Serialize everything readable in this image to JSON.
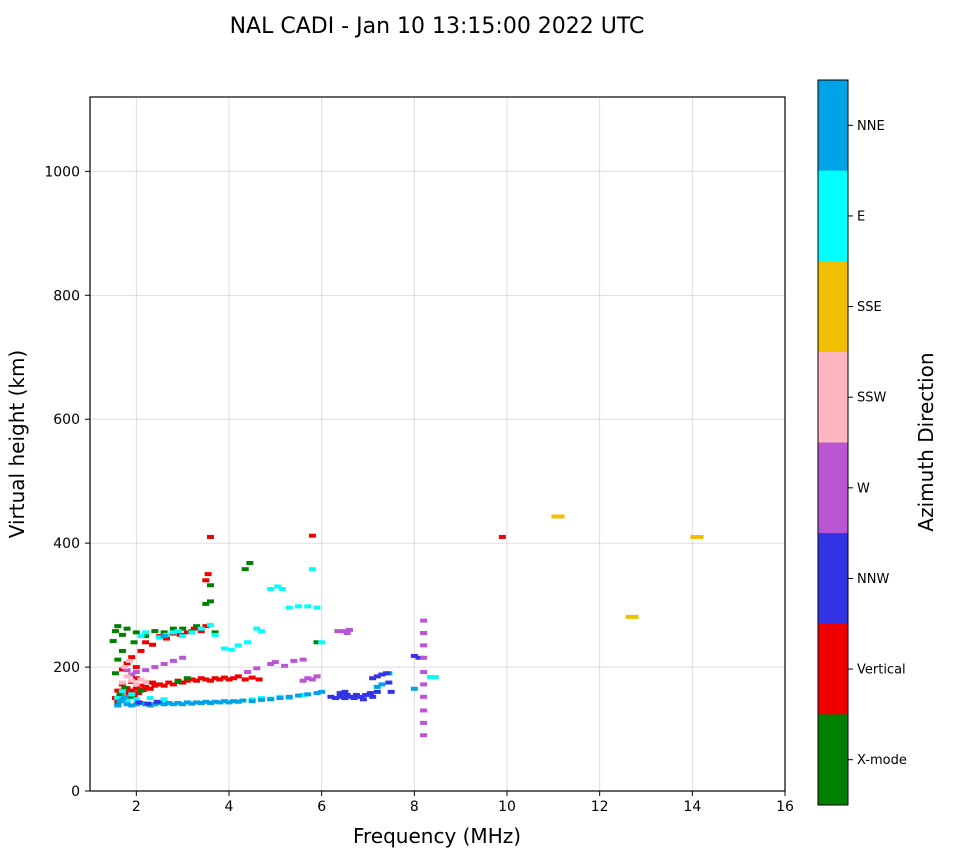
{
  "chart_data": {
    "type": "scatter",
    "title": "NAL CADI - Jan 10 13:15:00 2022 UTC",
    "xlabel": "Frequency (MHz)",
    "ylabel": "Virtual height (km)",
    "xlim": [
      1,
      16
    ],
    "ylim": [
      0,
      1120
    ],
    "xticks": [
      2,
      4,
      6,
      8,
      10,
      12,
      14,
      16
    ],
    "yticks": [
      0,
      200,
      400,
      600,
      800,
      1000
    ],
    "grid": true,
    "x_units": "MHz",
    "y_units": "km",
    "colorbar": {
      "label": "Azimuth Direction",
      "categories_top_to_bottom": [
        {
          "label": "NNE",
          "color": "#00a2e8"
        },
        {
          "label": "E",
          "color": "#00ffff"
        },
        {
          "label": "SSE",
          "color": "#f0c000"
        },
        {
          "label": "SSW",
          "color": "#ffb6c1"
        },
        {
          "label": "W",
          "color": "#ba55d3"
        },
        {
          "label": "NNW",
          "color": "#3333e6"
        },
        {
          "label": "Vertical",
          "color": "#ee0000"
        },
        {
          "label": "X-mode",
          "color": "#008000"
        }
      ]
    },
    "series": [
      {
        "name": "Vertical",
        "color": "#ee0000",
        "marker": {
          "w": 7,
          "h": 4
        },
        "points": [
          [
            1.55,
            150
          ],
          [
            1.6,
            145
          ],
          [
            1.6,
            162
          ],
          [
            1.65,
            155
          ],
          [
            1.7,
            150
          ],
          [
            1.7,
            172
          ],
          [
            1.75,
            160
          ],
          [
            1.8,
            152
          ],
          [
            1.8,
            166
          ],
          [
            1.85,
            158
          ],
          [
            1.9,
            162
          ],
          [
            1.9,
            176
          ],
          [
            1.95,
            152
          ],
          [
            2.0,
            165
          ],
          [
            2.0,
            182
          ],
          [
            2.05,
            158
          ],
          [
            2.1,
            170
          ],
          [
            2.15,
            163
          ],
          [
            2.2,
            168
          ],
          [
            2.3,
            165
          ],
          [
            2.35,
            175
          ],
          [
            2.4,
            170
          ],
          [
            2.5,
            172
          ],
          [
            2.6,
            170
          ],
          [
            2.7,
            175
          ],
          [
            2.8,
            172
          ],
          [
            2.9,
            178
          ],
          [
            3.0,
            175
          ],
          [
            3.1,
            178
          ],
          [
            3.2,
            180
          ],
          [
            3.3,
            178
          ],
          [
            3.4,
            182
          ],
          [
            3.5,
            180
          ],
          [
            3.6,
            178
          ],
          [
            3.7,
            182
          ],
          [
            3.8,
            180
          ],
          [
            3.9,
            183
          ],
          [
            4.0,
            180
          ],
          [
            4.1,
            182
          ],
          [
            4.2,
            185
          ],
          [
            4.35,
            180
          ],
          [
            4.5,
            183
          ],
          [
            4.65,
            180
          ],
          [
            1.7,
            196
          ],
          [
            1.8,
            206
          ],
          [
            1.9,
            216
          ],
          [
            2.0,
            200
          ],
          [
            2.1,
            226
          ],
          [
            2.2,
            240
          ],
          [
            2.35,
            236
          ],
          [
            2.5,
            250
          ],
          [
            2.65,
            246
          ],
          [
            2.8,
            254
          ],
          [
            2.95,
            252
          ],
          [
            3.1,
            256
          ],
          [
            3.25,
            262
          ],
          [
            3.4,
            258
          ],
          [
            3.5,
            266
          ],
          [
            3.5,
            340
          ],
          [
            3.55,
            350
          ],
          [
            3.6,
            410
          ],
          [
            5.8,
            412
          ],
          [
            9.9,
            410
          ]
        ]
      },
      {
        "name": "X-mode",
        "color": "#008000",
        "marker": {
          "w": 7,
          "h": 4
        },
        "points": [
          [
            1.5,
            242
          ],
          [
            1.55,
            190
          ],
          [
            1.55,
            258
          ],
          [
            1.6,
            140
          ],
          [
            1.6,
            212
          ],
          [
            1.6,
            266
          ],
          [
            1.65,
            156
          ],
          [
            1.7,
            226
          ],
          [
            1.7,
            252
          ],
          [
            1.75,
            166
          ],
          [
            1.8,
            262
          ],
          [
            1.9,
            152
          ],
          [
            1.95,
            240
          ],
          [
            2.0,
            256
          ],
          [
            2.1,
            162
          ],
          [
            2.2,
            250
          ],
          [
            2.4,
            258
          ],
          [
            2.6,
            256
          ],
          [
            2.8,
            262
          ],
          [
            2.9,
            176
          ],
          [
            3.0,
            262
          ],
          [
            3.1,
            182
          ],
          [
            3.2,
            258
          ],
          [
            3.3,
            266
          ],
          [
            3.4,
            262
          ],
          [
            3.5,
            302
          ],
          [
            3.6,
            306
          ],
          [
            3.6,
            332
          ],
          [
            3.7,
            256
          ],
          [
            4.35,
            358
          ],
          [
            4.45,
            368
          ],
          [
            5.9,
            240
          ]
        ]
      },
      {
        "name": "E",
        "color": "#00ffff",
        "marker": {
          "w": 7,
          "h": 4
        },
        "points": [
          [
            1.6,
            150
          ],
          [
            1.7,
            161
          ],
          [
            1.8,
            146
          ],
          [
            1.9,
            156
          ],
          [
            2.0,
            148
          ],
          [
            2.1,
            250
          ],
          [
            2.2,
            256
          ],
          [
            2.3,
            150
          ],
          [
            2.5,
            248
          ],
          [
            2.6,
            148
          ],
          [
            2.65,
            252
          ],
          [
            2.8,
            256
          ],
          [
            2.9,
            258
          ],
          [
            3.0,
            250
          ],
          [
            3.2,
            256
          ],
          [
            3.4,
            262
          ],
          [
            3.6,
            268
          ],
          [
            3.7,
            252
          ],
          [
            3.9,
            230
          ],
          [
            4.05,
            228
          ],
          [
            4.2,
            235
          ],
          [
            4.4,
            240
          ],
          [
            4.6,
            262
          ],
          [
            4.7,
            258
          ],
          [
            4.9,
            326
          ],
          [
            5.05,
            330
          ],
          [
            5.15,
            326
          ],
          [
            5.3,
            296
          ],
          [
            5.5,
            298
          ],
          [
            5.7,
            298
          ],
          [
            5.8,
            358
          ],
          [
            5.9,
            296
          ],
          [
            6.0,
            240
          ],
          [
            4.5,
            148
          ],
          [
            4.7,
            150
          ],
          [
            4.9,
            149
          ],
          [
            5.1,
            152
          ],
          [
            5.3,
            150
          ],
          [
            5.6,
            155
          ],
          [
            8.35,
            184
          ],
          [
            8.45,
            184
          ]
        ]
      },
      {
        "name": "NNE",
        "color": "#00a2e8",
        "marker": {
          "w": 7,
          "h": 4
        },
        "points": [
          [
            1.6,
            138
          ],
          [
            1.65,
            145
          ],
          [
            1.7,
            148
          ],
          [
            1.75,
            152
          ],
          [
            1.8,
            140
          ],
          [
            1.9,
            138
          ],
          [
            2.0,
            140
          ],
          [
            2.1,
            142
          ],
          [
            2.2,
            140
          ],
          [
            2.3,
            138
          ],
          [
            2.4,
            140
          ],
          [
            2.5,
            142
          ],
          [
            2.6,
            140
          ],
          [
            2.7,
            142
          ],
          [
            2.8,
            140
          ],
          [
            2.9,
            142
          ],
          [
            3.0,
            140
          ],
          [
            3.1,
            143
          ],
          [
            3.2,
            141
          ],
          [
            3.3,
            143
          ],
          [
            3.4,
            142
          ],
          [
            3.5,
            144
          ],
          [
            3.6,
            142
          ],
          [
            3.7,
            144
          ],
          [
            3.8,
            143
          ],
          [
            3.9,
            145
          ],
          [
            4.0,
            143
          ],
          [
            4.1,
            145
          ],
          [
            4.2,
            144
          ],
          [
            4.3,
            146
          ],
          [
            4.5,
            145
          ],
          [
            4.7,
            147
          ],
          [
            4.9,
            148
          ],
          [
            5.1,
            150
          ],
          [
            5.3,
            152
          ],
          [
            5.5,
            154
          ],
          [
            5.7,
            156
          ],
          [
            5.9,
            158
          ],
          [
            6.0,
            160
          ],
          [
            2.6,
            250
          ],
          [
            7.2,
            168
          ],
          [
            7.3,
            172
          ],
          [
            7.45,
            190
          ],
          [
            8.0,
            165
          ]
        ]
      },
      {
        "name": "NNW",
        "color": "#3333e6",
        "marker": {
          "w": 7,
          "h": 4
        },
        "points": [
          [
            2.05,
            143
          ],
          [
            2.25,
            141
          ],
          [
            2.45,
            144
          ],
          [
            6.2,
            152
          ],
          [
            6.3,
            150
          ],
          [
            6.4,
            152
          ],
          [
            6.4,
            158
          ],
          [
            6.5,
            150
          ],
          [
            6.5,
            160
          ],
          [
            6.55,
            155
          ],
          [
            6.6,
            152
          ],
          [
            6.7,
            150
          ],
          [
            6.75,
            155
          ],
          [
            6.85,
            152
          ],
          [
            6.9,
            148
          ],
          [
            6.95,
            155
          ],
          [
            7.05,
            158
          ],
          [
            7.1,
            152
          ],
          [
            7.1,
            182
          ],
          [
            7.2,
            160
          ],
          [
            7.2,
            185
          ],
          [
            7.3,
            188
          ],
          [
            7.4,
            190
          ],
          [
            7.45,
            175
          ],
          [
            7.5,
            160
          ],
          [
            8.0,
            218
          ],
          [
            8.1,
            215
          ]
        ]
      },
      {
        "name": "W",
        "color": "#ba55d3",
        "marker": {
          "w": 7,
          "h": 4
        },
        "points": [
          [
            1.8,
            195
          ],
          [
            1.9,
            188
          ],
          [
            2.0,
            192
          ],
          [
            2.2,
            195
          ],
          [
            2.4,
            200
          ],
          [
            2.6,
            205
          ],
          [
            2.8,
            210
          ],
          [
            3.0,
            215
          ],
          [
            4.4,
            192
          ],
          [
            4.6,
            198
          ],
          [
            4.9,
            205
          ],
          [
            5.0,
            208
          ],
          [
            5.2,
            202
          ],
          [
            5.4,
            210
          ],
          [
            5.6,
            212
          ],
          [
            5.6,
            178
          ],
          [
            5.7,
            182
          ],
          [
            5.8,
            180
          ],
          [
            5.9,
            185
          ],
          [
            6.35,
            258
          ],
          [
            6.45,
            258
          ],
          [
            6.55,
            255
          ],
          [
            6.6,
            260
          ],
          [
            8.2,
            90
          ],
          [
            8.2,
            110
          ],
          [
            8.2,
            130
          ],
          [
            8.2,
            152
          ],
          [
            8.2,
            172
          ],
          [
            8.2,
            192
          ],
          [
            8.2,
            215
          ],
          [
            8.2,
            235
          ],
          [
            8.2,
            255
          ],
          [
            8.2,
            275
          ]
        ]
      },
      {
        "name": "SSW",
        "color": "#ffb6c1",
        "marker": {
          "w": 7,
          "h": 4
        },
        "points": [
          [
            1.7,
            175
          ],
          [
            1.75,
            200
          ],
          [
            1.8,
            185
          ],
          [
            1.85,
            210
          ],
          [
            1.9,
            178
          ],
          [
            2.0,
            172
          ],
          [
            2.1,
            180
          ],
          [
            2.2,
            176
          ]
        ]
      },
      {
        "name": "SSE",
        "color": "#f0c000",
        "marker": {
          "w": 13,
          "h": 4
        },
        "points": [
          [
            11.1,
            443
          ],
          [
            12.7,
            281
          ],
          [
            14.1,
            410
          ]
        ]
      }
    ]
  }
}
